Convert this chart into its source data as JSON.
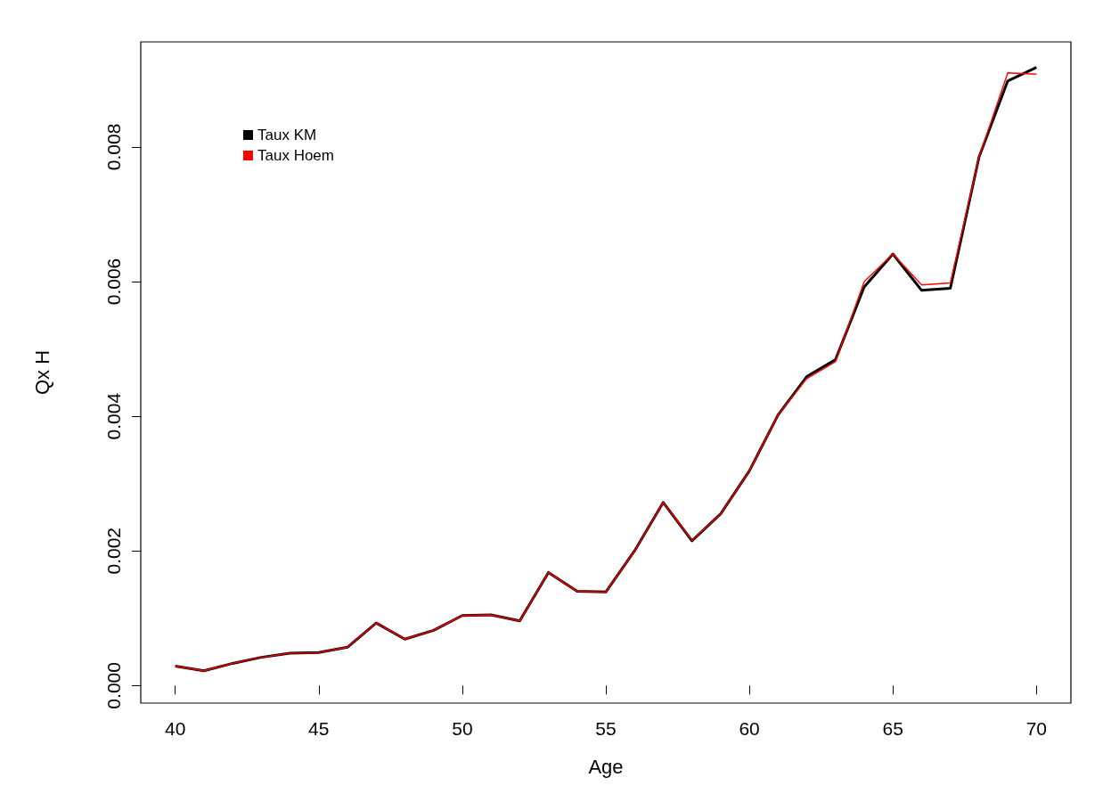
{
  "chart_data": {
    "type": "line",
    "xlabel": "Age",
    "ylabel": "Qx H",
    "x": [
      40,
      41,
      42,
      43,
      44,
      45,
      46,
      47,
      48,
      49,
      50,
      51,
      52,
      53,
      54,
      55,
      56,
      57,
      58,
      59,
      60,
      61,
      62,
      63,
      64,
      65,
      66,
      67,
      68,
      69,
      70
    ],
    "series": [
      {
        "name": "Taux KM",
        "color": "#000000",
        "values": [
          0.00029,
          0.00022,
          0.00033,
          0.00042,
          0.00048,
          0.00049,
          0.00057,
          0.00093,
          0.00069,
          0.00082,
          0.00104,
          0.00105,
          0.00096,
          0.00168,
          0.0014,
          0.00139,
          0.002,
          0.00272,
          0.00215,
          0.00255,
          0.00319,
          0.00402,
          0.00459,
          0.00484,
          0.00592,
          0.00641,
          0.00587,
          0.0059,
          0.00785,
          0.00898,
          0.00918
        ]
      },
      {
        "name": "Taux Hoem",
        "color": "#ff0000",
        "values": [
          0.00029,
          0.00022,
          0.00033,
          0.00042,
          0.00048,
          0.00049,
          0.00057,
          0.00093,
          0.00069,
          0.00082,
          0.00104,
          0.00105,
          0.00096,
          0.00168,
          0.0014,
          0.00139,
          0.002,
          0.00272,
          0.00216,
          0.00255,
          0.00319,
          0.00402,
          0.00456,
          0.00481,
          0.006,
          0.00641,
          0.00595,
          0.00598,
          0.00785,
          0.0091,
          0.00908
        ]
      }
    ],
    "xlim": [
      38.8,
      71.2
    ],
    "xticks": [
      40,
      45,
      50,
      55,
      60,
      65,
      70
    ],
    "ylim": [
      -0.00026,
      0.00956
    ],
    "yticks": [
      {
        "value": 0,
        "label": "0.000"
      },
      {
        "value": 0.002,
        "label": "0.002"
      },
      {
        "value": 0.004,
        "label": "0.004"
      },
      {
        "value": 0.006,
        "label": "0.006"
      },
      {
        "value": 0.008,
        "label": "0.008"
      }
    ],
    "legend": "top left",
    "grid": false,
    "marker": "none",
    "line_style": "solid"
  }
}
